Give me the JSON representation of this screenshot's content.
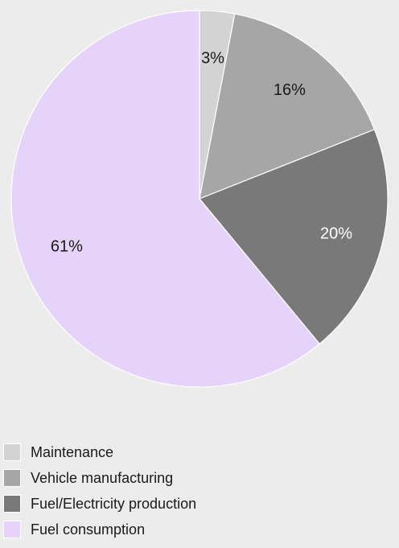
{
  "chart_data": {
    "type": "pie",
    "categories": [
      "Maintenance",
      "Vehicle manufacturing",
      "Fuel/Electricity production",
      "Fuel consumption"
    ],
    "values": [
      3,
      16,
      20,
      61
    ],
    "labels": [
      "3%",
      "16%",
      "20%",
      "61%"
    ],
    "colors": [
      "#d3d3d3",
      "#a6a6a6",
      "#797979",
      "#e5d3f9"
    ],
    "label_colors": [
      "#1a1a1a",
      "#1a1a1a",
      "#ffffff",
      "#1a1a1a"
    ],
    "start_angle": "12 o'clock",
    "direction": "clockwise",
    "legend_placement": "bottom-left"
  },
  "legend": {
    "items": [
      {
        "label": "Maintenance",
        "color": "#d3d3d3"
      },
      {
        "label": "Vehicle manufacturing",
        "color": "#a6a6a6"
      },
      {
        "label": "Fuel/Electricity production",
        "color": "#797979"
      },
      {
        "label": "Fuel consumption",
        "color": "#e5d3f9"
      }
    ]
  }
}
